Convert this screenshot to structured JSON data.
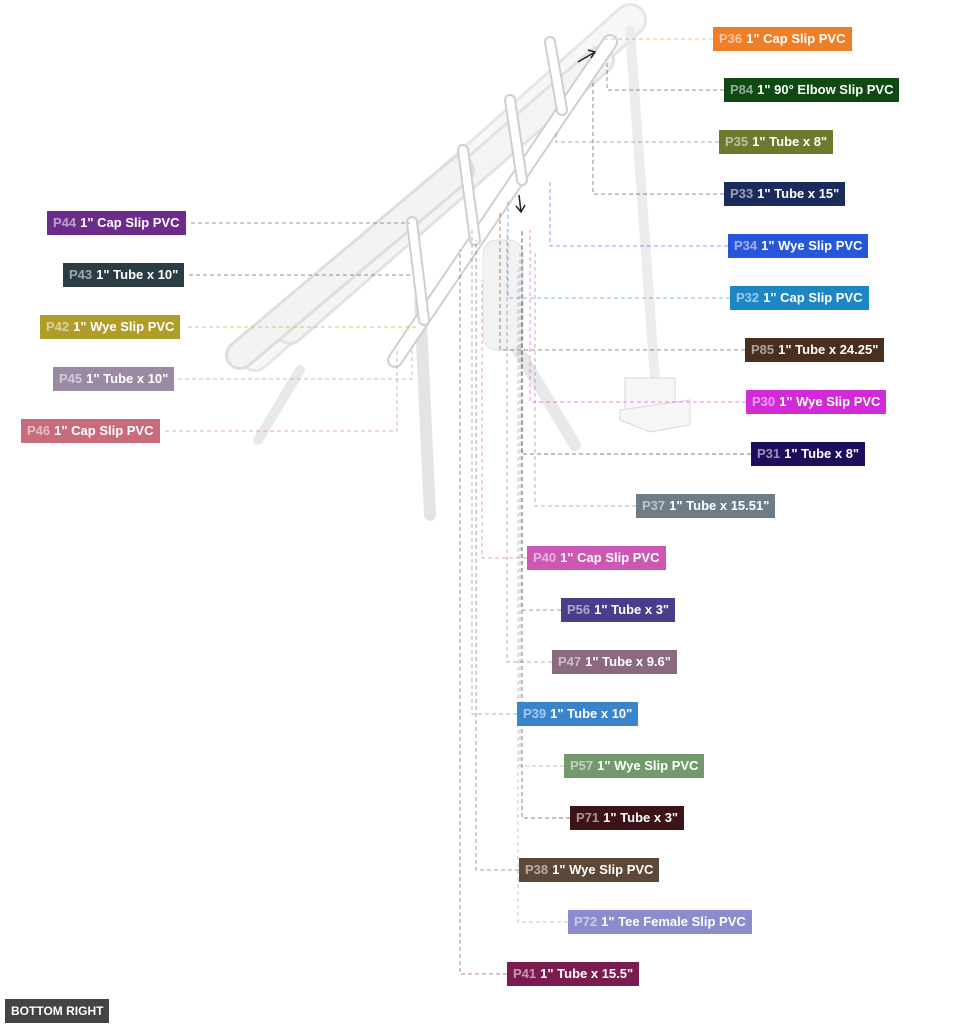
{
  "view_badge": "BOTTOM RIGHT",
  "parts": [
    {
      "id": "P36",
      "name": "1\" Cap Slip PVC",
      "color": "#f07e26"
    },
    {
      "id": "P84",
      "name": "1\" 90° Elbow Slip PVC",
      "color": "#0f4a12"
    },
    {
      "id": "P35",
      "name": "1\" Tube x 8\"",
      "color": "#6b7a2c"
    },
    {
      "id": "P33",
      "name": "1\" Tube x 15\"",
      "color": "#1a2c5c"
    },
    {
      "id": "P34",
      "name": "1\" Wye Slip PVC",
      "color": "#2756d8"
    },
    {
      "id": "P32",
      "name": "1\" Cap Slip PVC",
      "color": "#1d86c4"
    },
    {
      "id": "P85",
      "name": "1\" Tube x 24.25\"",
      "color": "#4a2e1e"
    },
    {
      "id": "P30",
      "name": "1\" Wye Slip PVC",
      "color": "#d22ad6"
    },
    {
      "id": "P31",
      "name": "1\" Tube x 8\"",
      "color": "#1e0d5a"
    },
    {
      "id": "P37",
      "name": "1\" Tube x 15.51\"",
      "color": "#6e7c88"
    },
    {
      "id": "P40",
      "name": "1\" Cap Slip PVC",
      "color": "#cc58b4"
    },
    {
      "id": "P56",
      "name": "1\" Tube x 3\"",
      "color": "#4c3c8c"
    },
    {
      "id": "P47",
      "name": "1\" Tube x 9.6\"",
      "color": "#8b6a80"
    },
    {
      "id": "P39",
      "name": "1\" Tube x 10\"",
      "color": "#3a84cc"
    },
    {
      "id": "P57",
      "name": "1\" Wye Slip PVC",
      "color": "#729a6c"
    },
    {
      "id": "P71",
      "name": "1\" Tube x 3\"",
      "color": "#3c1418"
    },
    {
      "id": "P38",
      "name": "1\" Wye Slip PVC",
      "color": "#5c4838"
    },
    {
      "id": "P72",
      "name": "1\" Tee Female Slip PVC",
      "color": "#8c8ccc"
    },
    {
      "id": "P41",
      "name": "1\" Tube x 15.5\"",
      "color": "#7a1c50"
    },
    {
      "id": "P44",
      "name": "1\" Cap Slip PVC",
      "color": "#6c2c8c"
    },
    {
      "id": "P43",
      "name": "1\" Tube x 10\"",
      "color": "#2c3c44"
    },
    {
      "id": "P42",
      "name": "1\" Wye Slip PVC",
      "color": "#b09c28"
    },
    {
      "id": "P45",
      "name": "1\" Tube x 10\"",
      "color": "#9a8aa4"
    },
    {
      "id": "P46",
      "name": "1\" Cap Slip PVC",
      "color": "#c86c7c"
    }
  ]
}
